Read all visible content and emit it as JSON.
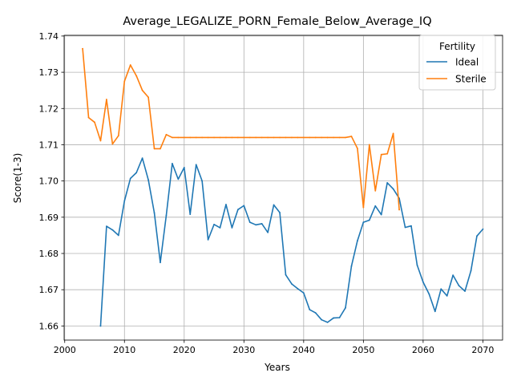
{
  "chart_data": {
    "type": "line",
    "title": "Average_LEGALIZE_PORN_Female_Below_Average_IQ",
    "xlabel": "Years",
    "ylabel": "Score(1-3)",
    "xlim": [
      1999.9,
      2073.3
    ],
    "ylim": [
      1.6561,
      1.7402
    ],
    "xticks": [
      2000,
      2010,
      2020,
      2030,
      2040,
      2050,
      2060,
      2070
    ],
    "yticks": [
      1.66,
      1.67,
      1.68,
      1.69,
      1.7,
      1.71,
      1.72,
      1.73,
      1.74
    ],
    "xtick_labels": [
      "2000",
      "2010",
      "2020",
      "2030",
      "2040",
      "2050",
      "2060",
      "2070"
    ],
    "ytick_labels": [
      "1.66",
      "1.67",
      "1.68",
      "1.69",
      "1.70",
      "1.71",
      "1.72",
      "1.73",
      "1.74"
    ],
    "grid": true,
    "legend": {
      "title": "Fertility",
      "position": "upper right"
    },
    "series": [
      {
        "name": "Ideal",
        "color": "#1f77b4",
        "x": [
          2006,
          2007,
          2008,
          2009,
          2010,
          2011,
          2012,
          2013,
          2014,
          2015,
          2016,
          2017,
          2018,
          2019,
          2020,
          2021,
          2022,
          2023,
          2024,
          2025,
          2026,
          2027,
          2028,
          2029,
          2030,
          2031,
          2032,
          2033,
          2034,
          2035,
          2036,
          2037,
          2038,
          2039,
          2040,
          2041,
          2042,
          2043,
          2044,
          2045,
          2046,
          2047,
          2048,
          2049,
          2050,
          2051,
          2052,
          2053,
          2054,
          2055,
          2056,
          2057,
          2058,
          2059,
          2060,
          2061,
          2062,
          2063,
          2064,
          2065,
          2066,
          2067,
          2068,
          2069,
          2070
        ],
        "y": [
          1.66,
          1.6875,
          1.6865,
          1.685,
          1.6945,
          1.7007,
          1.7023,
          1.7063,
          1.7003,
          1.6912,
          1.6775,
          1.6905,
          1.7048,
          1.7005,
          1.7037,
          1.6908,
          1.7045,
          1.7,
          1.6838,
          1.688,
          1.6871,
          1.6935,
          1.6871,
          1.6921,
          1.6932,
          1.6886,
          1.6879,
          1.6882,
          1.6858,
          1.6934,
          1.6913,
          1.6741,
          1.6716,
          1.6703,
          1.6691,
          1.6645,
          1.6636,
          1.6617,
          1.661,
          1.6622,
          1.6623,
          1.665,
          1.6765,
          1.6835,
          1.6886,
          1.6892,
          1.6931,
          1.6907,
          1.6995,
          1.6978,
          1.6952,
          1.6872,
          1.6876,
          1.6768,
          1.6721,
          1.6688,
          1.664,
          1.6702,
          1.6683,
          1.674,
          1.6711,
          1.6696,
          1.6752,
          1.6848,
          1.6867
        ]
      },
      {
        "name": "Sterile",
        "color": "#ff7f0e",
        "x": [
          2003,
          2004,
          2005,
          2006,
          2007,
          2008,
          2009,
          2010,
          2011,
          2012,
          2013,
          2014,
          2015,
          2016,
          2017,
          2018,
          2019,
          2020,
          2021,
          2022,
          2023,
          2024,
          2025,
          2026,
          2027,
          2028,
          2029,
          2030,
          2031,
          2032,
          2033,
          2034,
          2035,
          2036,
          2037,
          2038,
          2039,
          2040,
          2041,
          2042,
          2043,
          2044,
          2045,
          2046,
          2047,
          2048,
          2049,
          2050,
          2051,
          2052,
          2053,
          2054,
          2055,
          2056
        ],
        "y": [
          1.7365,
          1.7175,
          1.7162,
          1.7111,
          1.7225,
          1.7102,
          1.7125,
          1.7275,
          1.732,
          1.729,
          1.725,
          1.7231,
          1.7089,
          1.7089,
          1.7128,
          1.712,
          1.712,
          1.712,
          1.712,
          1.712,
          1.712,
          1.712,
          1.712,
          1.712,
          1.712,
          1.712,
          1.712,
          1.712,
          1.712,
          1.712,
          1.712,
          1.712,
          1.712,
          1.712,
          1.712,
          1.712,
          1.712,
          1.712,
          1.712,
          1.712,
          1.712,
          1.712,
          1.712,
          1.712,
          1.712,
          1.7123,
          1.709,
          1.6927,
          1.71,
          1.6973,
          1.7073,
          1.7075,
          1.7131,
          1.6921
        ]
      }
    ]
  }
}
